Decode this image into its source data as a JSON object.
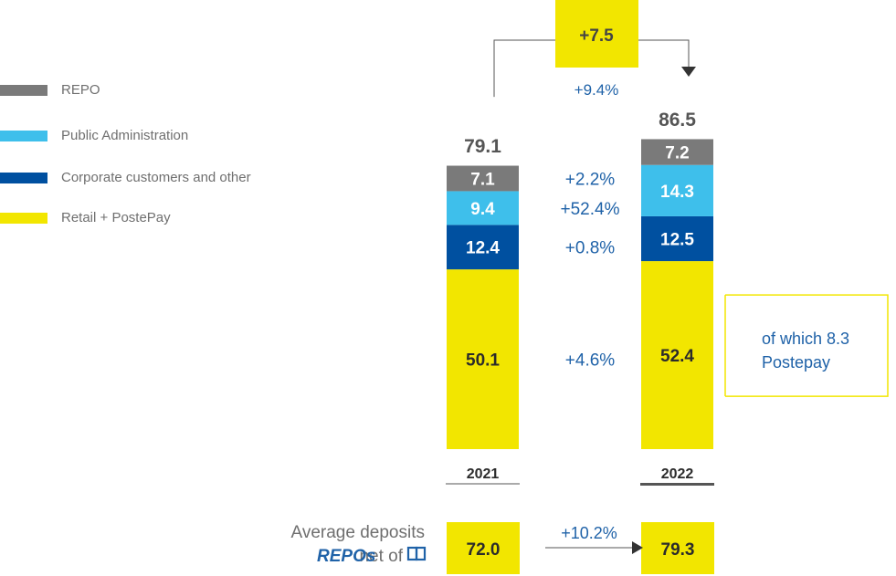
{
  "legend": [
    {
      "label": "REPO",
      "color": "#7a7a7a"
    },
    {
      "label": "Public Administration",
      "color": "#3ebfeb"
    },
    {
      "label": "Corporate customers and other",
      "color": "#0050a0"
    },
    {
      "label": "Retail + PostePay",
      "color": "#f2e600"
    }
  ],
  "chart_data": {
    "type": "bar",
    "stacked": true,
    "categories": [
      "2021",
      "2022"
    ],
    "series": [
      {
        "name": "Retail + PostePay",
        "color": "#f2e600",
        "label_color": "#2b2b2b",
        "values": [
          50.1,
          52.4
        ]
      },
      {
        "name": "Corporate customers and other",
        "color": "#0050a0",
        "label_color": "#ffffff",
        "values": [
          12.4,
          12.5
        ]
      },
      {
        "name": "Public Administration",
        "color": "#3ebfeb",
        "label_color": "#ffffff",
        "values": [
          9.4,
          14.3
        ]
      },
      {
        "name": "REPO",
        "color": "#7a7a7a",
        "label_color": "#ffffff",
        "values": [
          7.1,
          7.2
        ]
      }
    ],
    "value_labels": [
      [
        "50.1",
        "52.4"
      ],
      [
        "12.4",
        "12.5"
      ],
      [
        "9.4",
        "14.3"
      ],
      [
        "7.1",
        "7.2"
      ]
    ],
    "totals": [
      79.1,
      86.5
    ],
    "total_labels": [
      "79.1",
      "86.5"
    ],
    "growth_labels": [
      "+4.6%",
      "+0.8%",
      "+52.4%",
      "+2.2%"
    ],
    "change": {
      "absolute": "+7.5",
      "percent": "+9.4%"
    },
    "note": [
      "of which 8.3",
      "Postepay"
    ],
    "average_deposits": {
      "label_lines": [
        "Average deposits",
        "net of"
      ],
      "label_term": "REPOs",
      "values": [
        72.0,
        79.3
      ],
      "value_labels": [
        "72.0",
        "79.3"
      ],
      "growth": "+10.2%"
    }
  }
}
